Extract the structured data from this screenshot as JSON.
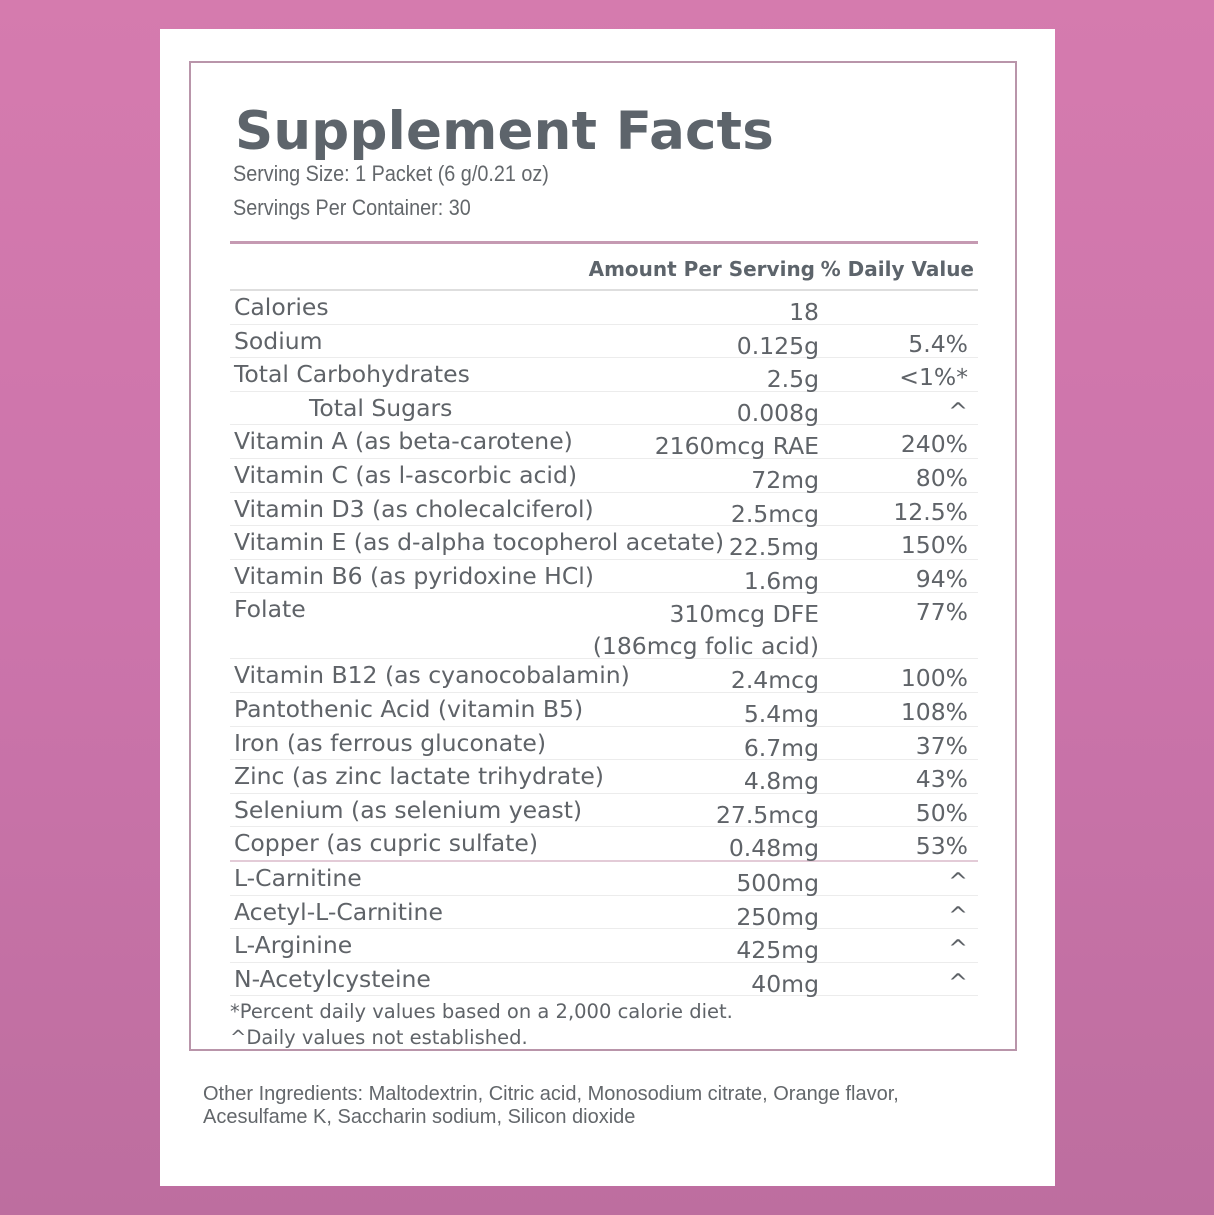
{
  "panel": {
    "title": "Supplement Facts",
    "serving_size": "Serving Size: 1 Packet (6 g/0.21 oz)",
    "servings_per_container": "Servings Per Container: 30",
    "headers": {
      "amount": "Amount Per Serving",
      "daily_value": "% Daily Value"
    },
    "rows": [
      {
        "name": "Calories",
        "amount": "18",
        "dv": ""
      },
      {
        "name": "Sodium",
        "amount": "0.125g",
        "dv": "5.4%"
      },
      {
        "name": "Total Carbohydrates",
        "amount": "2.5g",
        "dv": "<1%*"
      },
      {
        "name": "Total Sugars",
        "amount": "0.008g",
        "dv": "^"
      },
      {
        "name": "Vitamin A (as beta-carotene)",
        "amount": "2160mcg RAE",
        "dv": "240%"
      },
      {
        "name": "Vitamin C (as l-ascorbic acid)",
        "amount": "72mg",
        "dv": "80%"
      },
      {
        "name": "Vitamin D3 (as cholecalciferol)",
        "amount": "2.5mcg",
        "dv": "12.5%"
      },
      {
        "name": "Vitamin E (as d-alpha tocopherol acetate)",
        "amount": "22.5mg",
        "dv": "150%"
      },
      {
        "name": "Vitamin B6 (as pyridoxine HCl)",
        "amount": "1.6mg",
        "dv": "94%"
      },
      {
        "name": "Folate",
        "amount": "310mcg DFE",
        "amount_line2": "(186mcg folic acid)",
        "dv": "77%"
      },
      {
        "name": "Vitamin B12 (as cyanocobalamin)",
        "amount": "2.4mcg",
        "dv": "100%"
      },
      {
        "name": "Pantothenic Acid (vitamin B5)",
        "amount": "5.4mg",
        "dv": "108%"
      },
      {
        "name": "Iron (as ferrous gluconate)",
        "amount": "6.7mg",
        "dv": "37%"
      },
      {
        "name": "Zinc (as zinc lactate trihydrate)",
        "amount": "4.8mg",
        "dv": "43%"
      },
      {
        "name": "Selenium (as selenium yeast)",
        "amount": "27.5mcg",
        "dv": "50%"
      },
      {
        "name": "Copper (as cupric sulfate)",
        "amount": "0.48mg",
        "dv": "53%"
      },
      {
        "name": "L-Carnitine",
        "amount": "500mg",
        "dv": "^"
      },
      {
        "name": "Acetyl-L-Carnitine",
        "amount": "250mg",
        "dv": "^"
      },
      {
        "name": "L-Arginine",
        "amount": "425mg",
        "dv": "^"
      },
      {
        "name": "N-Acetylcysteine",
        "amount": "40mg",
        "dv": "^"
      }
    ],
    "footnotes": [
      "*Percent daily values based on a 2,000 calorie diet.",
      "^Daily values not established."
    ]
  },
  "other_ingredients": "Other Ingredients:  Maltodextrin, Citric acid, Monosodium citrate, Orange flavor, Acesulfame K, Saccharin sodium, Silicon dioxide",
  "colors": {
    "background_top": "#d57bae",
    "background_bottom": "#bd6e9f",
    "border": "#b995aa",
    "text": "#5f6368"
  }
}
